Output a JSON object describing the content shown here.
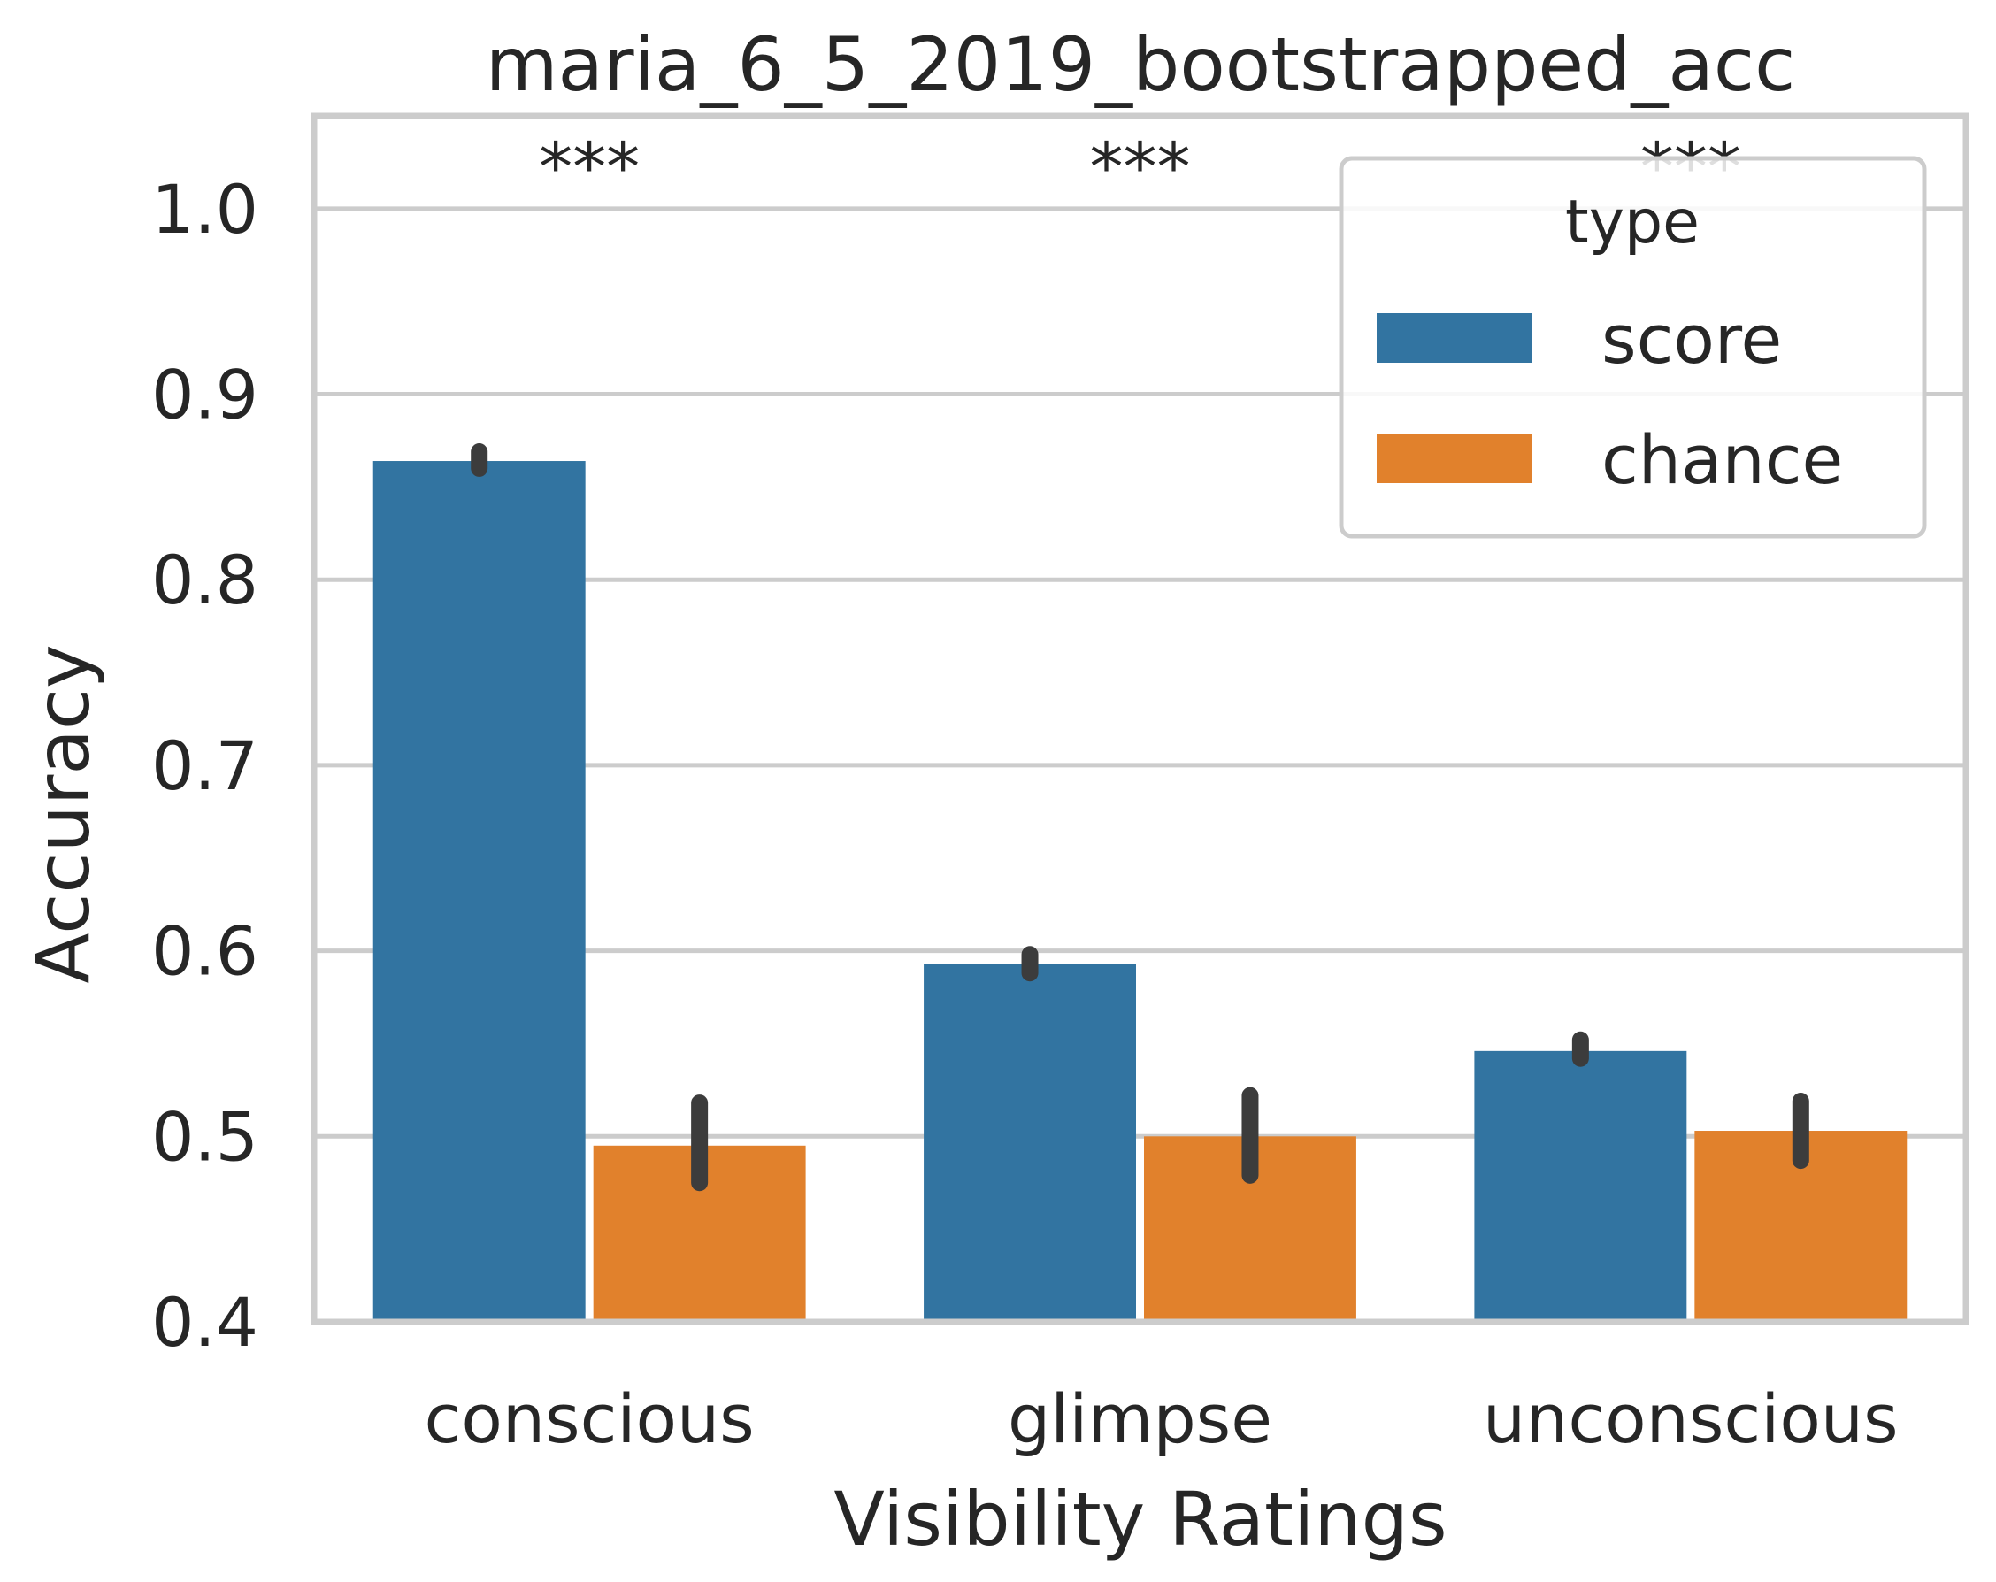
{
  "chart_data": {
    "type": "bar",
    "title": "maria_6_5_2019_bootstrapped_acc",
    "xlabel": "Visibility Ratings",
    "ylabel": "Accuracy",
    "categories": [
      "conscious",
      "glimpse",
      "unconscious"
    ],
    "series": [
      {
        "name": "score",
        "color": "#3274a1",
        "values": [
          0.864,
          0.593,
          0.546
        ],
        "ci_low": [
          0.86,
          0.588,
          0.542
        ],
        "ci_high": [
          0.869,
          0.598,
          0.552
        ]
      },
      {
        "name": "chance",
        "color": "#e1812c",
        "values": [
          0.495,
          0.5,
          0.503
        ],
        "ci_low": [
          0.475,
          0.479,
          0.487
        ],
        "ci_high": [
          0.518,
          0.522,
          0.519
        ]
      }
    ],
    "significance": [
      "***",
      "***",
      "***"
    ],
    "ylim": [
      0.4,
      1.05
    ],
    "yticks": [
      "0.4",
      "0.5",
      "0.6",
      "0.7",
      "0.8",
      "0.9",
      "1.0"
    ],
    "grid": true,
    "legend": {
      "title": "type",
      "position": "top-right"
    },
    "errorbar_color": "#3c3c3c"
  }
}
